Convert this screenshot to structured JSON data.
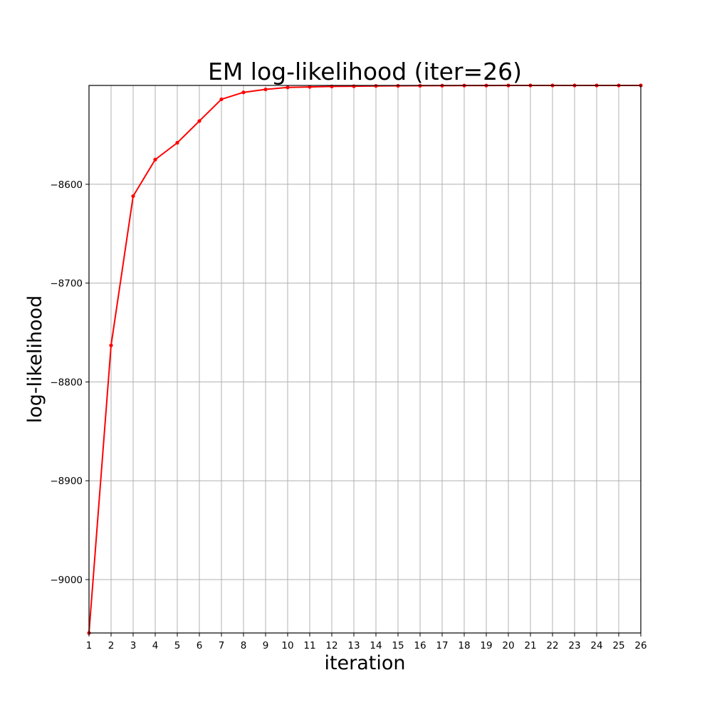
{
  "chart_data": {
    "type": "line",
    "title": "EM log-likelihood (iter=26)",
    "xlabel": "iteration",
    "ylabel": "log-likelihood",
    "xlim": [
      1,
      26
    ],
    "ylim": [
      -9054,
      -8500
    ],
    "xticks": [
      1,
      2,
      3,
      4,
      5,
      6,
      7,
      8,
      9,
      10,
      11,
      12,
      13,
      14,
      15,
      16,
      17,
      18,
      19,
      20,
      21,
      22,
      23,
      24,
      25,
      26
    ],
    "yticks": [
      -9000,
      -8900,
      -8800,
      -8700,
      -8600
    ],
    "ytick_labels": [
      "−9000",
      "−8900",
      "−8800",
      "−8700",
      "−8600"
    ],
    "grid": true,
    "series": [
      {
        "color": "#ff0000",
        "marker": "dot",
        "x": [
          1,
          2,
          3,
          4,
          5,
          6,
          7,
          8,
          9,
          10,
          11,
          12,
          13,
          14,
          15,
          16,
          17,
          18,
          19,
          20,
          21,
          22,
          23,
          24,
          25,
          26
        ],
        "y": [
          -9054,
          -8763,
          -8612,
          -8575,
          -8558,
          -8536,
          -8514,
          -8507,
          -8504,
          -8502,
          -8501.5,
          -8501,
          -8500.8,
          -8500.5,
          -8500.4,
          -8500.3,
          -8500.2,
          -8500.1,
          -8500.1,
          -8500,
          -8500,
          -8500,
          -8500,
          -8500,
          -8500,
          -8500
        ]
      }
    ]
  }
}
